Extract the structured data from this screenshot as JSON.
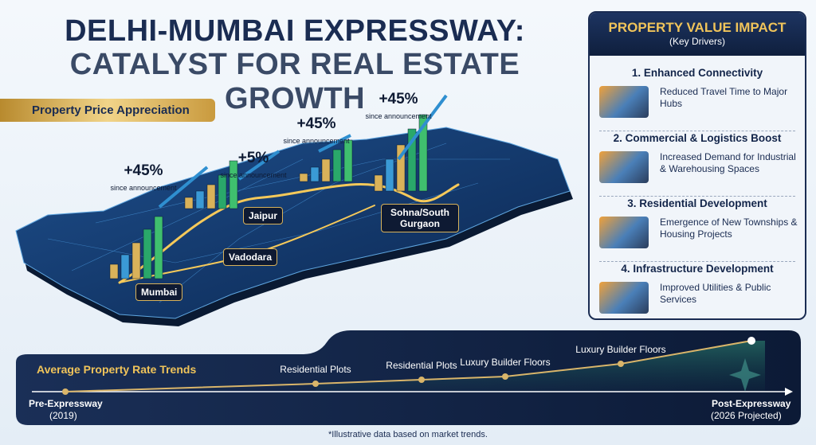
{
  "header": {
    "title_line1": "DELHI-MUMBAI EXPRESSWAY:",
    "title_line2": "CATALYST FOR REAL ESTATE GROWTH"
  },
  "map": {
    "label": "Property Price Appreciation",
    "callouts": [
      {
        "value": "+45%",
        "note": "since announcement"
      },
      {
        "value": "+5%",
        "note": "since announcement"
      },
      {
        "value": "+45%",
        "note": "since announcement"
      },
      {
        "value": "+45%",
        "note": "since announcement"
      }
    ],
    "cities": [
      "Mumbai",
      "Vadodara",
      "Jaipur",
      "Sohna/South Gurgaon"
    ]
  },
  "panel": {
    "title": "PROPERTY VALUE IMPACT",
    "subtitle": "(Key Drivers)",
    "items": [
      {
        "heading": "1. Enhanced Connectivity",
        "text": "Reduced Travel Time to Major Hubs"
      },
      {
        "heading": "2. Commercial & Logistics Boost",
        "text": "Increased Demand for Industrial & Warehousing Spaces"
      },
      {
        "heading": "3. Residential Development",
        "text": "Emergence of New Townships & Housing Projects"
      },
      {
        "heading": "4. Infrastructure Development",
        "text": "Improved Utilities & Public Services"
      }
    ]
  },
  "trend": {
    "title": "Average Property Rate Trends",
    "start": "Pre-Expressway",
    "start_note": "(2019)",
    "end": "Post-Expressway",
    "end_note": "(2026 Projected)",
    "points": [
      "Residential Plots",
      "Residential Plots",
      "Luxury Builder Floors",
      "Luxury Builder Floors"
    ]
  },
  "footnote": "*Illustrative data based on market trends."
}
